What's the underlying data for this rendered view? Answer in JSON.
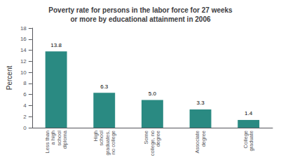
{
  "chart_data": {
    "type": "bar",
    "title": "Poverty rate for persons in the labor force for 27 weeks\nor more by educational attainment in 2006",
    "categories": [
      "Less than\na high\nschool\ndiploma",
      "High\nschool\ngraduates,\nno college",
      "Some\ncollege, no\ndegree",
      "Associate\ndegree",
      "College\ngraduate"
    ],
    "values": [
      13.8,
      6.3,
      5.0,
      3.3,
      1.4
    ],
    "value_labels": [
      "13.8",
      "6.3",
      "5.0",
      "3.3",
      "1.4"
    ],
    "color": "#2a8a82",
    "ylabel": "Percent",
    "ylim": [
      0,
      18
    ],
    "yticks": [
      0,
      2,
      4,
      6,
      8,
      10,
      12,
      14,
      16,
      18
    ],
    "data_labels": true,
    "grid": false
  }
}
